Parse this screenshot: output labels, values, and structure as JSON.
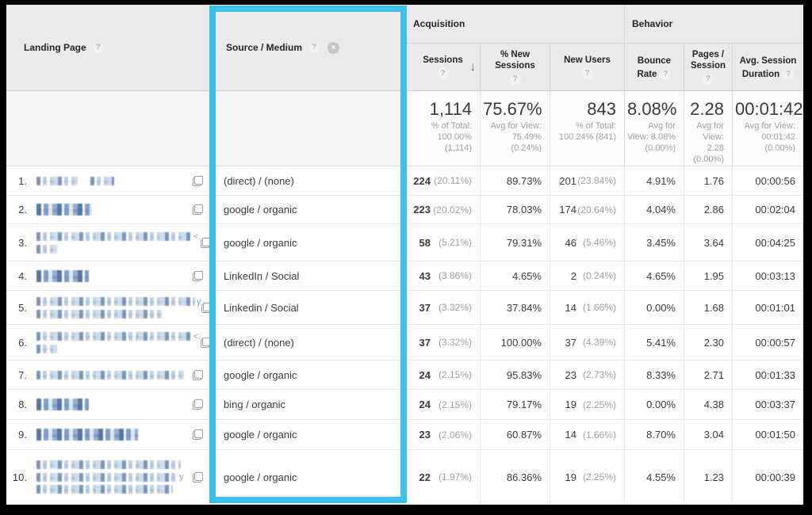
{
  "icons": {
    "help": "?",
    "close": "×",
    "sort_desc": "↓",
    "external_link": "open-in-new"
  },
  "highlight_color": "#3ec1e9",
  "table": {
    "dimension_headers": [
      {
        "label": "Landing Page"
      },
      {
        "label": "Source / Medium"
      }
    ],
    "groups": [
      {
        "label": "Acquisition"
      },
      {
        "label": "Behavior"
      }
    ],
    "metrics": [
      {
        "label": "Sessions"
      },
      {
        "label": "% New Sessions"
      },
      {
        "label": "New Users"
      },
      {
        "label": "Bounce Rate"
      },
      {
        "label": "Pages / Session"
      },
      {
        "label": "Avg. Session Duration"
      }
    ],
    "totals": {
      "sessions": {
        "value": "1,114",
        "note": "% of Total: 100.00% (1,114)"
      },
      "pct_new_sessions": {
        "value": "75.67%",
        "note": "Avg for View: 75.49% (0.24%)"
      },
      "new_users": {
        "value": "843",
        "note": "% of Total: 100.24% (841)"
      },
      "bounce_rate": {
        "value": "8.08%",
        "note": "Avg for View: 8.08% (0.00%)"
      },
      "pages_per_session": {
        "value": "2.28",
        "note": "Avg for View: 2.28 (0.00%)"
      },
      "avg_session_duration": {
        "value": "00:01:42",
        "note": "Avg for View: 00:01:42 (0.00%)"
      }
    },
    "rows": [
      {
        "index": "1.",
        "source_medium": "(direct) / (none)",
        "sessions": "224",
        "sessions_pct": "(20.11%)",
        "pct_new_sessions": "89.73%",
        "new_users": "201",
        "new_users_pct": "(23.84%)",
        "bounce_rate": "4.91%",
        "pages_per_session": "1.76",
        "avg_session_duration": "00:00:56",
        "landing_redacted": [
          {
            "segs": [
              52,
              30
            ]
          }
        ]
      },
      {
        "index": "2.",
        "source_medium": "google / organic",
        "sessions": "223",
        "sessions_pct": "(20.02%)",
        "pct_new_sessions": "78.03%",
        "new_users": "174",
        "new_users_pct": "(20.64%)",
        "bounce_rate": "4.04%",
        "pages_per_session": "2.86",
        "avg_session_duration": "00:02:04",
        "landing_redacted": [
          {
            "segs": [
              70
            ],
            "dense": true
          }
        ]
      },
      {
        "index": "3.",
        "source_medium": "google / organic",
        "sessions": "58",
        "sessions_pct": "(5.21%)",
        "pct_new_sessions": "79.31%",
        "new_users": "46",
        "new_users_pct": "(5.46%)",
        "bounce_rate": "3.45%",
        "pages_per_session": "3.64",
        "avg_session_duration": "00:04:25",
        "landing_redacted": [
          {
            "segs": [
              196
            ],
            "suffix": "<."
          },
          {
            "segs": [
              26
            ]
          }
        ]
      },
      {
        "index": "4.",
        "source_medium": "LinkedIn / Social",
        "sessions": "43",
        "sessions_pct": "(3.86%)",
        "pct_new_sessions": "4.65%",
        "new_users": "2",
        "new_users_pct": "(0.24%)",
        "bounce_rate": "4.65%",
        "pages_per_session": "1.95",
        "avg_session_duration": "00:03:13",
        "landing_redacted": [
          {
            "segs": [
              66
            ],
            "dense": true
          }
        ]
      },
      {
        "index": "5.",
        "source_medium": "Linkedin / Social",
        "sessions": "37",
        "sessions_pct": "(3.32%)",
        "pct_new_sessions": "37.84%",
        "new_users": "14",
        "new_users_pct": "(1.66%)",
        "bounce_rate": "0.00%",
        "pages_per_session": "1.68",
        "avg_session_duration": "00:01:01",
        "landing_redacted": [
          {
            "segs": [
              200
            ],
            "suffix": "y"
          },
          {
            "segs": [
              158
            ]
          }
        ]
      },
      {
        "index": "6.",
        "source_medium": "(direct) / (none)",
        "sessions": "37",
        "sessions_pct": "(3.32%)",
        "pct_new_sessions": "100.00%",
        "new_users": "37",
        "new_users_pct": "(4.39%)",
        "bounce_rate": "5.41%",
        "pages_per_session": "2.30",
        "avg_session_duration": "00:00:57",
        "landing_redacted": [
          {
            "segs": [
              196
            ],
            "suffix": "<."
          },
          {
            "segs": [
              26
            ]
          }
        ]
      },
      {
        "index": "7.",
        "source_medium": "google / organic",
        "sessions": "24",
        "sessions_pct": "(2.15%)",
        "pct_new_sessions": "95.83%",
        "new_users": "23",
        "new_users_pct": "(2.73%)",
        "bounce_rate": "8.33%",
        "pages_per_session": "2.71",
        "avg_session_duration": "00:01:33",
        "landing_redacted": [
          {
            "segs": [
              186
            ]
          }
        ]
      },
      {
        "index": "8.",
        "source_medium": "bing / organic",
        "sessions": "24",
        "sessions_pct": "(2.15%)",
        "pct_new_sessions": "79.17%",
        "new_users": "19",
        "new_users_pct": "(2.25%)",
        "bounce_rate": "0.00%",
        "pages_per_session": "4.38",
        "avg_session_duration": "00:03:37",
        "landing_redacted": [
          {
            "segs": [
              66
            ],
            "dense": true
          }
        ]
      },
      {
        "index": "9.",
        "source_medium": "google / organic",
        "sessions": "23",
        "sessions_pct": "(2.06%)",
        "pct_new_sessions": "60.87%",
        "new_users": "14",
        "new_users_pct": "(1.66%)",
        "bounce_rate": "8.70%",
        "pages_per_session": "3.04",
        "avg_session_duration": "00:01:50",
        "landing_redacted": [
          {
            "segs": [
              128
            ],
            "dense": true
          }
        ]
      },
      {
        "index": "10.",
        "source_medium": "google / organic",
        "sessions": "22",
        "sessions_pct": "(1.97%)",
        "pct_new_sessions": "86.36%",
        "new_users": "19",
        "new_users_pct": "(2.25%)",
        "bounce_rate": "4.55%",
        "pages_per_session": "1.23",
        "avg_session_duration": "00:00:39",
        "landing_redacted": [
          {
            "segs": [
              182
            ]
          },
          {
            "segs": [
              178
            ],
            "suffix": "y"
          },
          {
            "segs": [
              172
            ]
          }
        ]
      }
    ]
  }
}
